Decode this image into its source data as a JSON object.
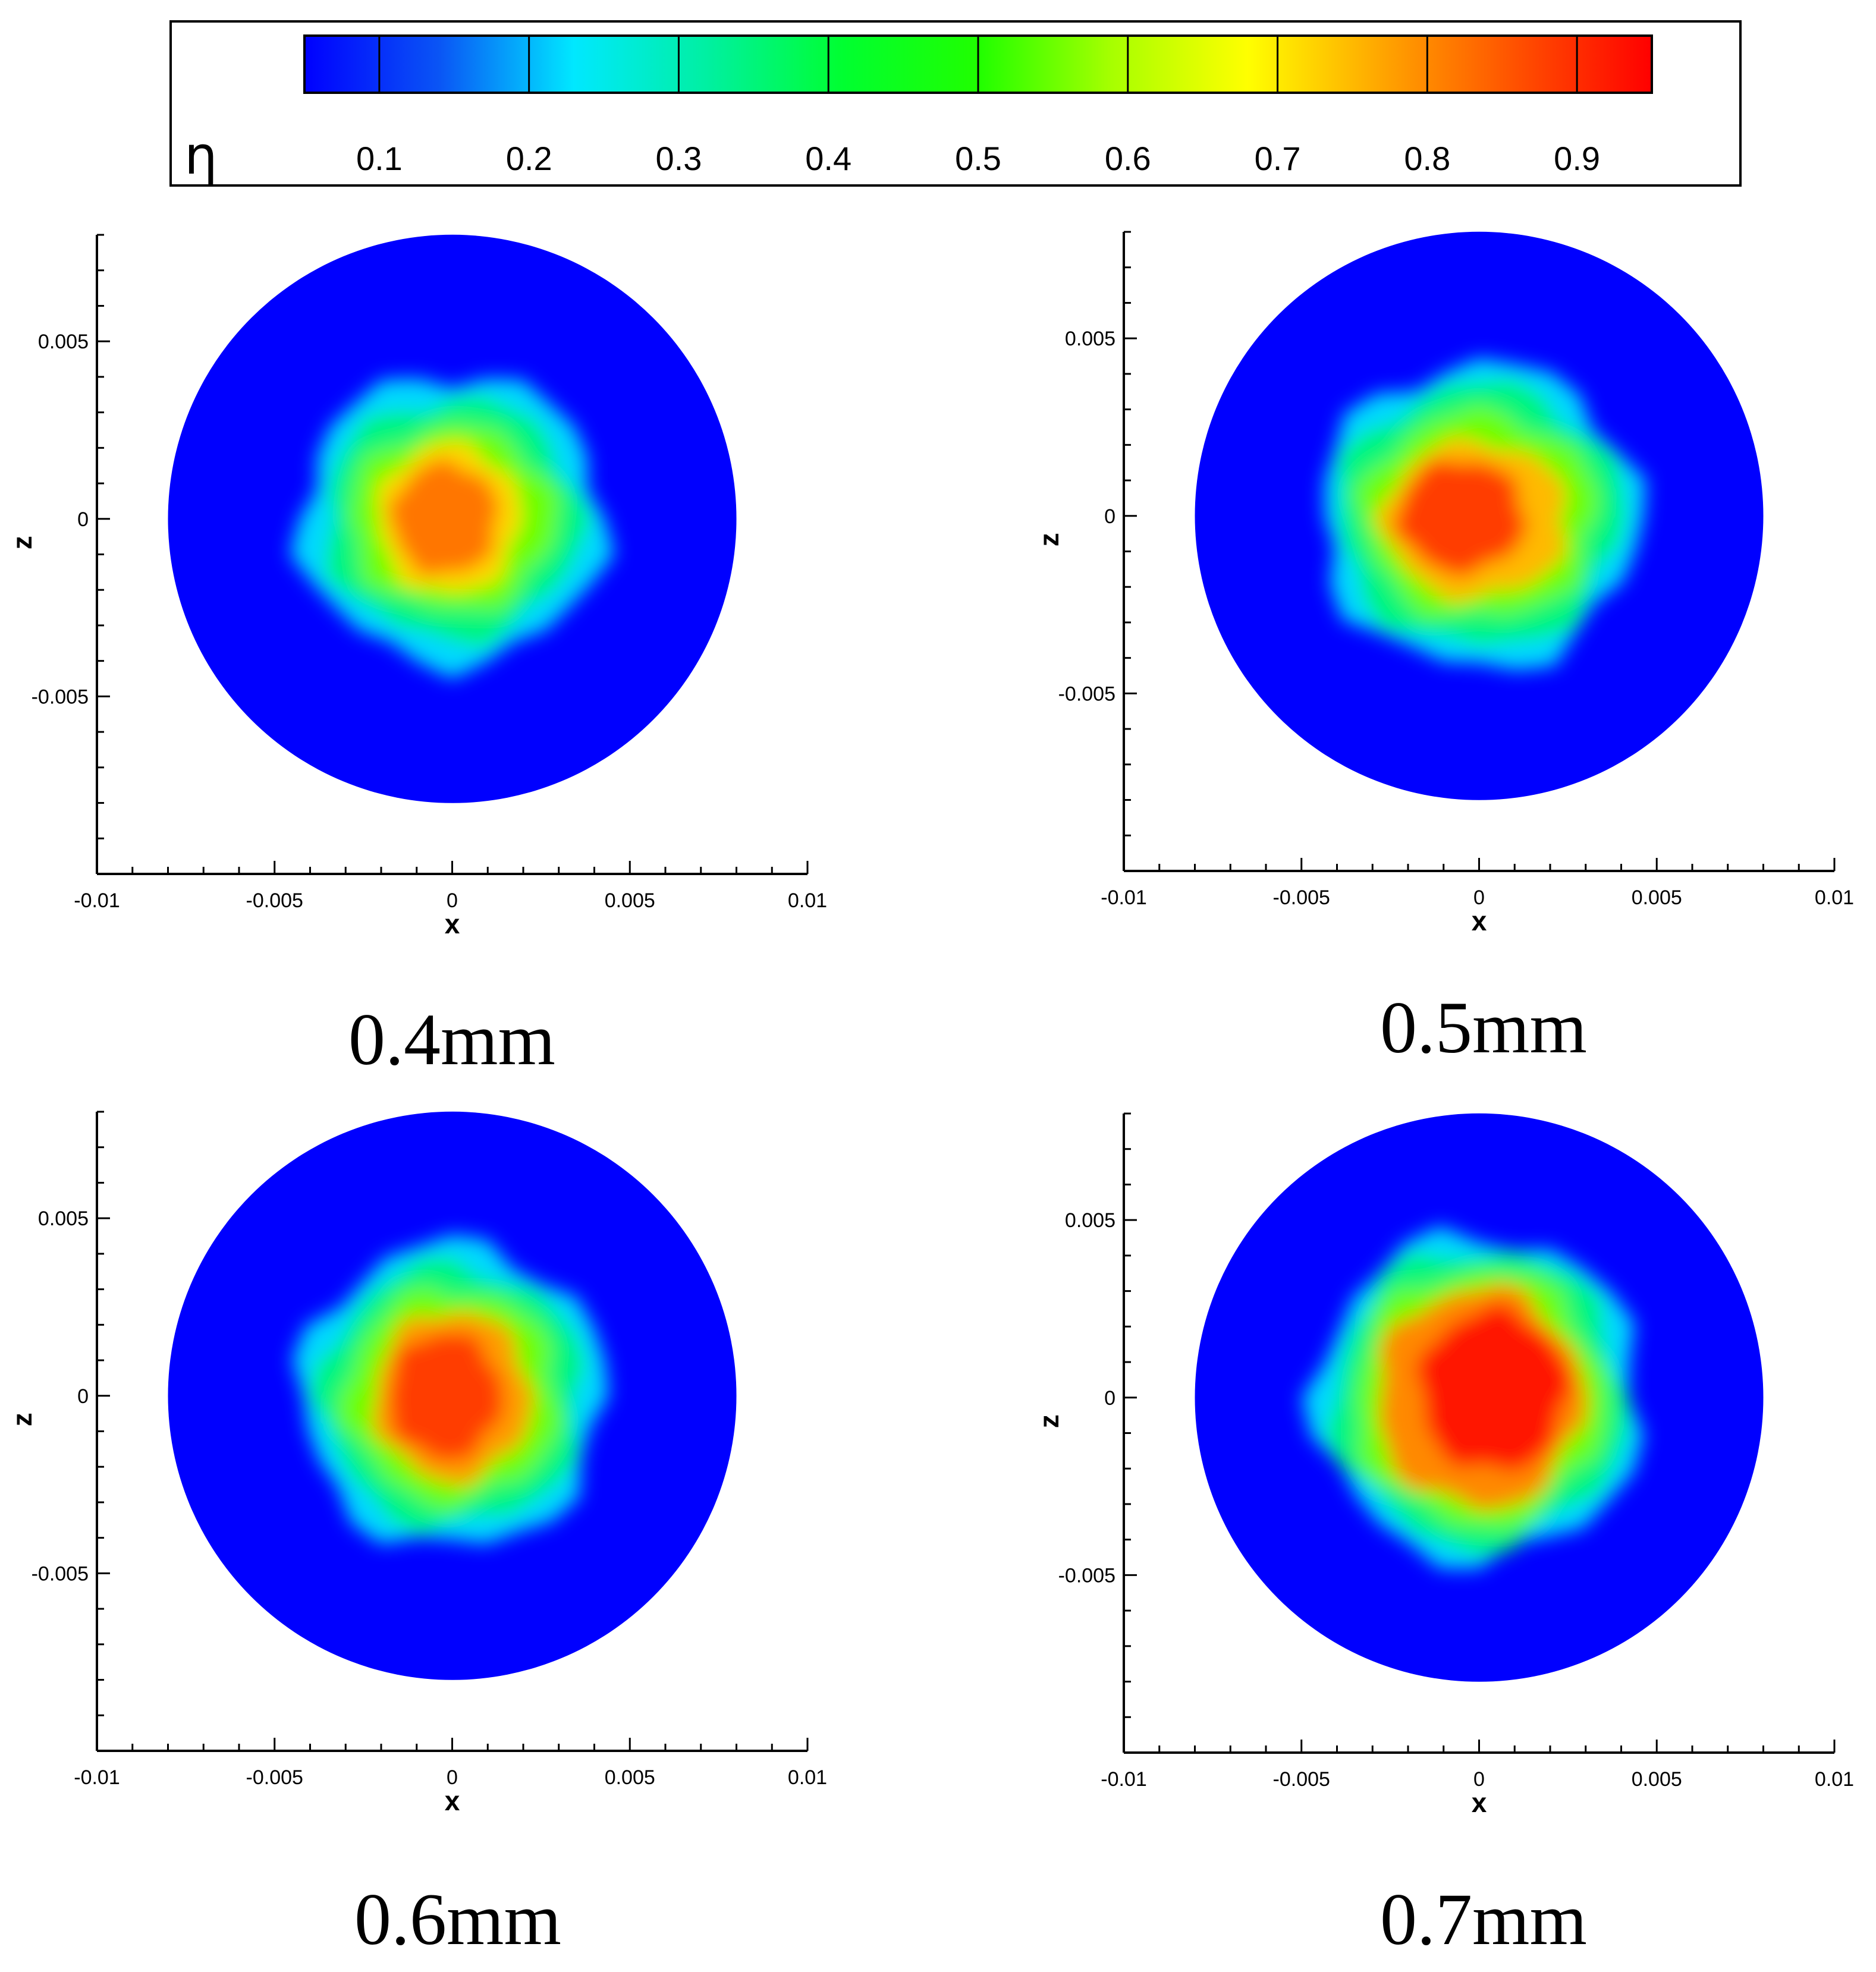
{
  "colorbar": {
    "symbol": "η",
    "tick_labels": [
      "0.1",
      "0.2",
      "0.3",
      "0.4",
      "0.5",
      "0.6",
      "0.7",
      "0.8",
      "0.9"
    ],
    "ticks": [
      0.1,
      0.2,
      0.3,
      0.4,
      0.5,
      0.6,
      0.7,
      0.8,
      0.9
    ],
    "range": [
      0.05,
      0.95
    ],
    "colors": [
      "#0000ff",
      "#0a55f5",
      "#00e8ff",
      "#00f0a0",
      "#00ff30",
      "#20ff00",
      "#a8ff00",
      "#ffff00",
      "#ffa500",
      "#ff5000",
      "#ff0000"
    ]
  },
  "chart_data": [
    {
      "type": "heatmap",
      "caption": "0.4mm",
      "xlabel": "x",
      "ylabel": "z",
      "xlim": [
        -0.01,
        0.01
      ],
      "ylim": [
        -0.01,
        0.008
      ],
      "x_tick_labels": [
        "-0.01",
        "-0.005",
        "0",
        "0.005",
        "0.01"
      ],
      "x_ticks": [
        -0.01,
        -0.005,
        0,
        0.005,
        0.01
      ],
      "y_tick_labels": [
        "0.005",
        "0",
        "-0.005"
      ],
      "y_ticks": [
        0.005,
        0,
        -0.005
      ],
      "domain_radius": 0.008,
      "background_value": 0.05,
      "levels": [
        {
          "value": 0.22,
          "half_width": 0.0043,
          "half_height": 0.0041,
          "cx": 0.0,
          "cz": 0.0
        },
        {
          "value": 0.35,
          "half_width": 0.0036,
          "half_height": 0.0034,
          "cx": 0.0,
          "cz": 0.0
        },
        {
          "value": 0.55,
          "half_width": 0.0029,
          "half_height": 0.0026,
          "cx": 0.0,
          "cz": 0.0
        },
        {
          "value": 0.72,
          "half_width": 0.002,
          "half_height": 0.0021,
          "cx": -0.0001,
          "cz": 0.0
        },
        {
          "value": 0.82,
          "half_width": 0.0015,
          "half_height": 0.0016,
          "cx": -0.0002,
          "cz": 0.0
        }
      ]
    },
    {
      "type": "heatmap",
      "caption": "0.5mm",
      "xlabel": "x",
      "ylabel": "z",
      "xlim": [
        -0.01,
        0.01
      ],
      "ylim": [
        -0.01,
        0.008
      ],
      "x_tick_labels": [
        "-0.01",
        "-0.005",
        "0",
        "0.005",
        "0.01"
      ],
      "x_ticks": [
        -0.01,
        -0.005,
        0,
        0.005,
        0.01
      ],
      "y_tick_labels": [
        "0.005",
        "0",
        "-0.005"
      ],
      "y_ticks": [
        0.005,
        0,
        -0.005
      ],
      "domain_radius": 0.008,
      "background_value": 0.05,
      "levels": [
        {
          "value": 0.22,
          "half_width": 0.0045,
          "half_height": 0.0043,
          "cx": 0.0,
          "cz": 0.0
        },
        {
          "value": 0.35,
          "half_width": 0.004,
          "half_height": 0.0037,
          "cx": 0.0,
          "cz": 0.0
        },
        {
          "value": 0.55,
          "half_width": 0.0033,
          "half_height": 0.0029,
          "cx": 0.0,
          "cz": 0.0
        },
        {
          "value": 0.75,
          "half_width": 0.0026,
          "half_height": 0.0022,
          "cx": -0.0001,
          "cz": -0.0001
        },
        {
          "value": 0.88,
          "half_width": 0.0018,
          "half_height": 0.0016,
          "cx": -0.0005,
          "cz": 0.0
        }
      ]
    },
    {
      "type": "heatmap",
      "caption": "0.6mm",
      "xlabel": "x",
      "ylabel": "z",
      "xlim": [
        -0.01,
        0.01
      ],
      "ylim": [
        -0.01,
        0.008
      ],
      "x_tick_labels": [
        "-0.01",
        "-0.005",
        "0",
        "0.005",
        "0.01"
      ],
      "x_ticks": [
        -0.01,
        -0.005,
        0,
        0.005,
        0.01
      ],
      "y_tick_labels": [
        "0.005",
        "0",
        "-0.005"
      ],
      "y_ticks": [
        0.005,
        0,
        -0.005
      ],
      "domain_radius": 0.008,
      "background_value": 0.05,
      "levels": [
        {
          "value": 0.22,
          "half_width": 0.0043,
          "half_height": 0.0043,
          "cx": 0.0,
          "cz": 0.0
        },
        {
          "value": 0.35,
          "half_width": 0.0037,
          "half_height": 0.0037,
          "cx": 0.0,
          "cz": 0.0
        },
        {
          "value": 0.55,
          "half_width": 0.003,
          "half_height": 0.003,
          "cx": 0.0,
          "cz": 0.0
        },
        {
          "value": 0.78,
          "half_width": 0.0022,
          "half_height": 0.0024,
          "cx": 0.0,
          "cz": 0.0
        },
        {
          "value": 0.88,
          "half_width": 0.0016,
          "half_height": 0.0018,
          "cx": -0.0002,
          "cz": 0.0
        }
      ]
    },
    {
      "type": "heatmap",
      "caption": "0.7mm",
      "xlabel": "x",
      "ylabel": "z",
      "xlim": [
        -0.01,
        0.01
      ],
      "ylim": [
        -0.01,
        0.008
      ],
      "x_tick_labels": [
        "-0.01",
        "-0.005",
        "0",
        "0.005",
        "0.01"
      ],
      "x_ticks": [
        -0.01,
        -0.005,
        0,
        0.005,
        0.01
      ],
      "y_tick_labels": [
        "0.005",
        "0",
        "-0.005"
      ],
      "y_ticks": [
        0.005,
        0,
        -0.005
      ],
      "domain_radius": 0.008,
      "background_value": 0.05,
      "levels": [
        {
          "value": 0.22,
          "half_width": 0.0046,
          "half_height": 0.0046,
          "cx": 0.0,
          "cz": 0.0
        },
        {
          "value": 0.35,
          "half_width": 0.0041,
          "half_height": 0.0042,
          "cx": 0.0,
          "cz": 0.0
        },
        {
          "value": 0.55,
          "half_width": 0.0035,
          "half_height": 0.0036,
          "cx": 0.0,
          "cz": 0.0
        },
        {
          "value": 0.8,
          "half_width": 0.0029,
          "half_height": 0.0031,
          "cx": 0.0,
          "cz": 0.0
        },
        {
          "value": 0.93,
          "half_width": 0.0021,
          "half_height": 0.0023,
          "cx": 0.0004,
          "cz": 0.0002
        }
      ]
    }
  ]
}
